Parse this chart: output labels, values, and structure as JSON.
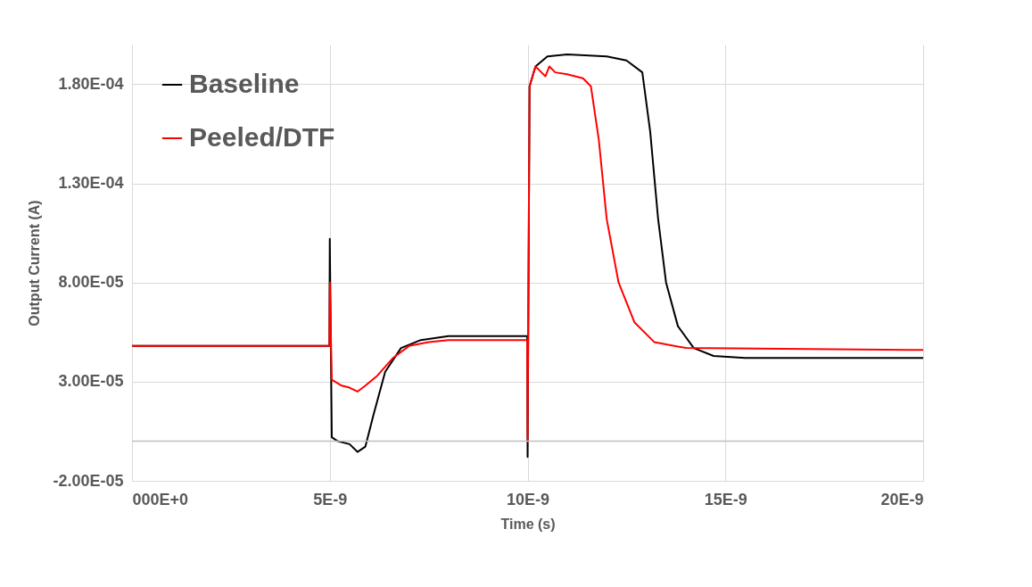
{
  "chart_data": {
    "type": "line",
    "xlabel": "Time (s)",
    "ylabel": "Output Current (A)",
    "xlim": [
      0,
      2e-08
    ],
    "ylim": [
      -2e-05,
      0.0002
    ],
    "xticks": [
      {
        "value": 0,
        "label": "000E+0"
      },
      {
        "value": 5e-09,
        "label": "5E-9"
      },
      {
        "value": 1e-08,
        "label": "10E-9"
      },
      {
        "value": 1.5e-08,
        "label": "15E-9"
      },
      {
        "value": 2e-08,
        "label": "20E-9"
      }
    ],
    "yticks": [
      {
        "value": -2e-05,
        "label": "-2.00E-05"
      },
      {
        "value": 3e-05,
        "label": "3.00E-05"
      },
      {
        "value": 8e-05,
        "label": "8.00E-05"
      },
      {
        "value": 0.00013,
        "label": "1.30E-04"
      },
      {
        "value": 0.00018,
        "label": "1.80E-04"
      }
    ],
    "grid": true,
    "legend": "top left",
    "line_style": "solid",
    "marker": "none",
    "ref_lines": [
      {
        "axis": "y",
        "value": 0,
        "label": null,
        "color": "#bfbfbf"
      }
    ],
    "series": [
      {
        "name": "Baseline",
        "color": "#000000",
        "x": [
          0,
          4.99e-09,
          5e-09,
          5.05e-09,
          5.2e-09,
          5.5e-09,
          5.7e-09,
          5.9e-09,
          6.1e-09,
          6.4e-09,
          6.8e-09,
          7.3e-09,
          8e-09,
          9.99e-09,
          1e-08,
          1.005e-08,
          1.02e-08,
          1.05e-08,
          1.1e-08,
          1.2e-08,
          1.25e-08,
          1.29e-08,
          1.31e-08,
          1.33e-08,
          1.35e-08,
          1.38e-08,
          1.42e-08,
          1.47e-08,
          1.55e-08,
          2e-08
        ],
        "values": [
          4.8e-05,
          4.8e-05,
          0.000102,
          2e-06,
          0,
          -1.5e-06,
          -5.4e-06,
          -2.7e-06,
          1.3e-05,
          3.5e-05,
          4.7e-05,
          5.1e-05,
          5.3e-05,
          5.3e-05,
          -8e-06,
          0.000179,
          0.000189,
          0.000194,
          0.000195,
          0.000194,
          0.000192,
          0.000186,
          0.000156,
          0.000112,
          8e-05,
          5.8e-05,
          4.7e-05,
          4.3e-05,
          4.2e-05,
          4.2e-05
        ]
      },
      {
        "name": "Peeled/DTF",
        "color": "#ff0000",
        "x": [
          0,
          4.99e-09,
          5e-09,
          5.05e-09,
          5.3e-09,
          5.5e-09,
          5.7e-09,
          5.9e-09,
          6.2e-09,
          6.6e-09,
          7e-09,
          7.5e-09,
          8e-09,
          9.99e-09,
          1e-08,
          1.005e-08,
          1.02e-08,
          1.035e-08,
          1.045e-08,
          1.055e-08,
          1.07e-08,
          1.1e-08,
          1.14e-08,
          1.16e-08,
          1.18e-08,
          1.2e-08,
          1.23e-08,
          1.27e-08,
          1.32e-08,
          1.4e-08,
          2e-08
        ],
        "values": [
          4.8e-05,
          4.8e-05,
          8e-05,
          3.1e-05,
          2.8e-05,
          2.7e-05,
          2.5e-05,
          2.8e-05,
          3.3e-05,
          4.2e-05,
          4.8e-05,
          5e-05,
          5.1e-05,
          5.1e-05,
          0,
          0.000179,
          0.000189,
          0.000186,
          0.000184,
          0.000189,
          0.000186,
          0.000185,
          0.000183,
          0.000179,
          0.000152,
          0.000112,
          8e-05,
          6e-05,
          5e-05,
          4.7e-05,
          4.6e-05
        ]
      }
    ]
  }
}
